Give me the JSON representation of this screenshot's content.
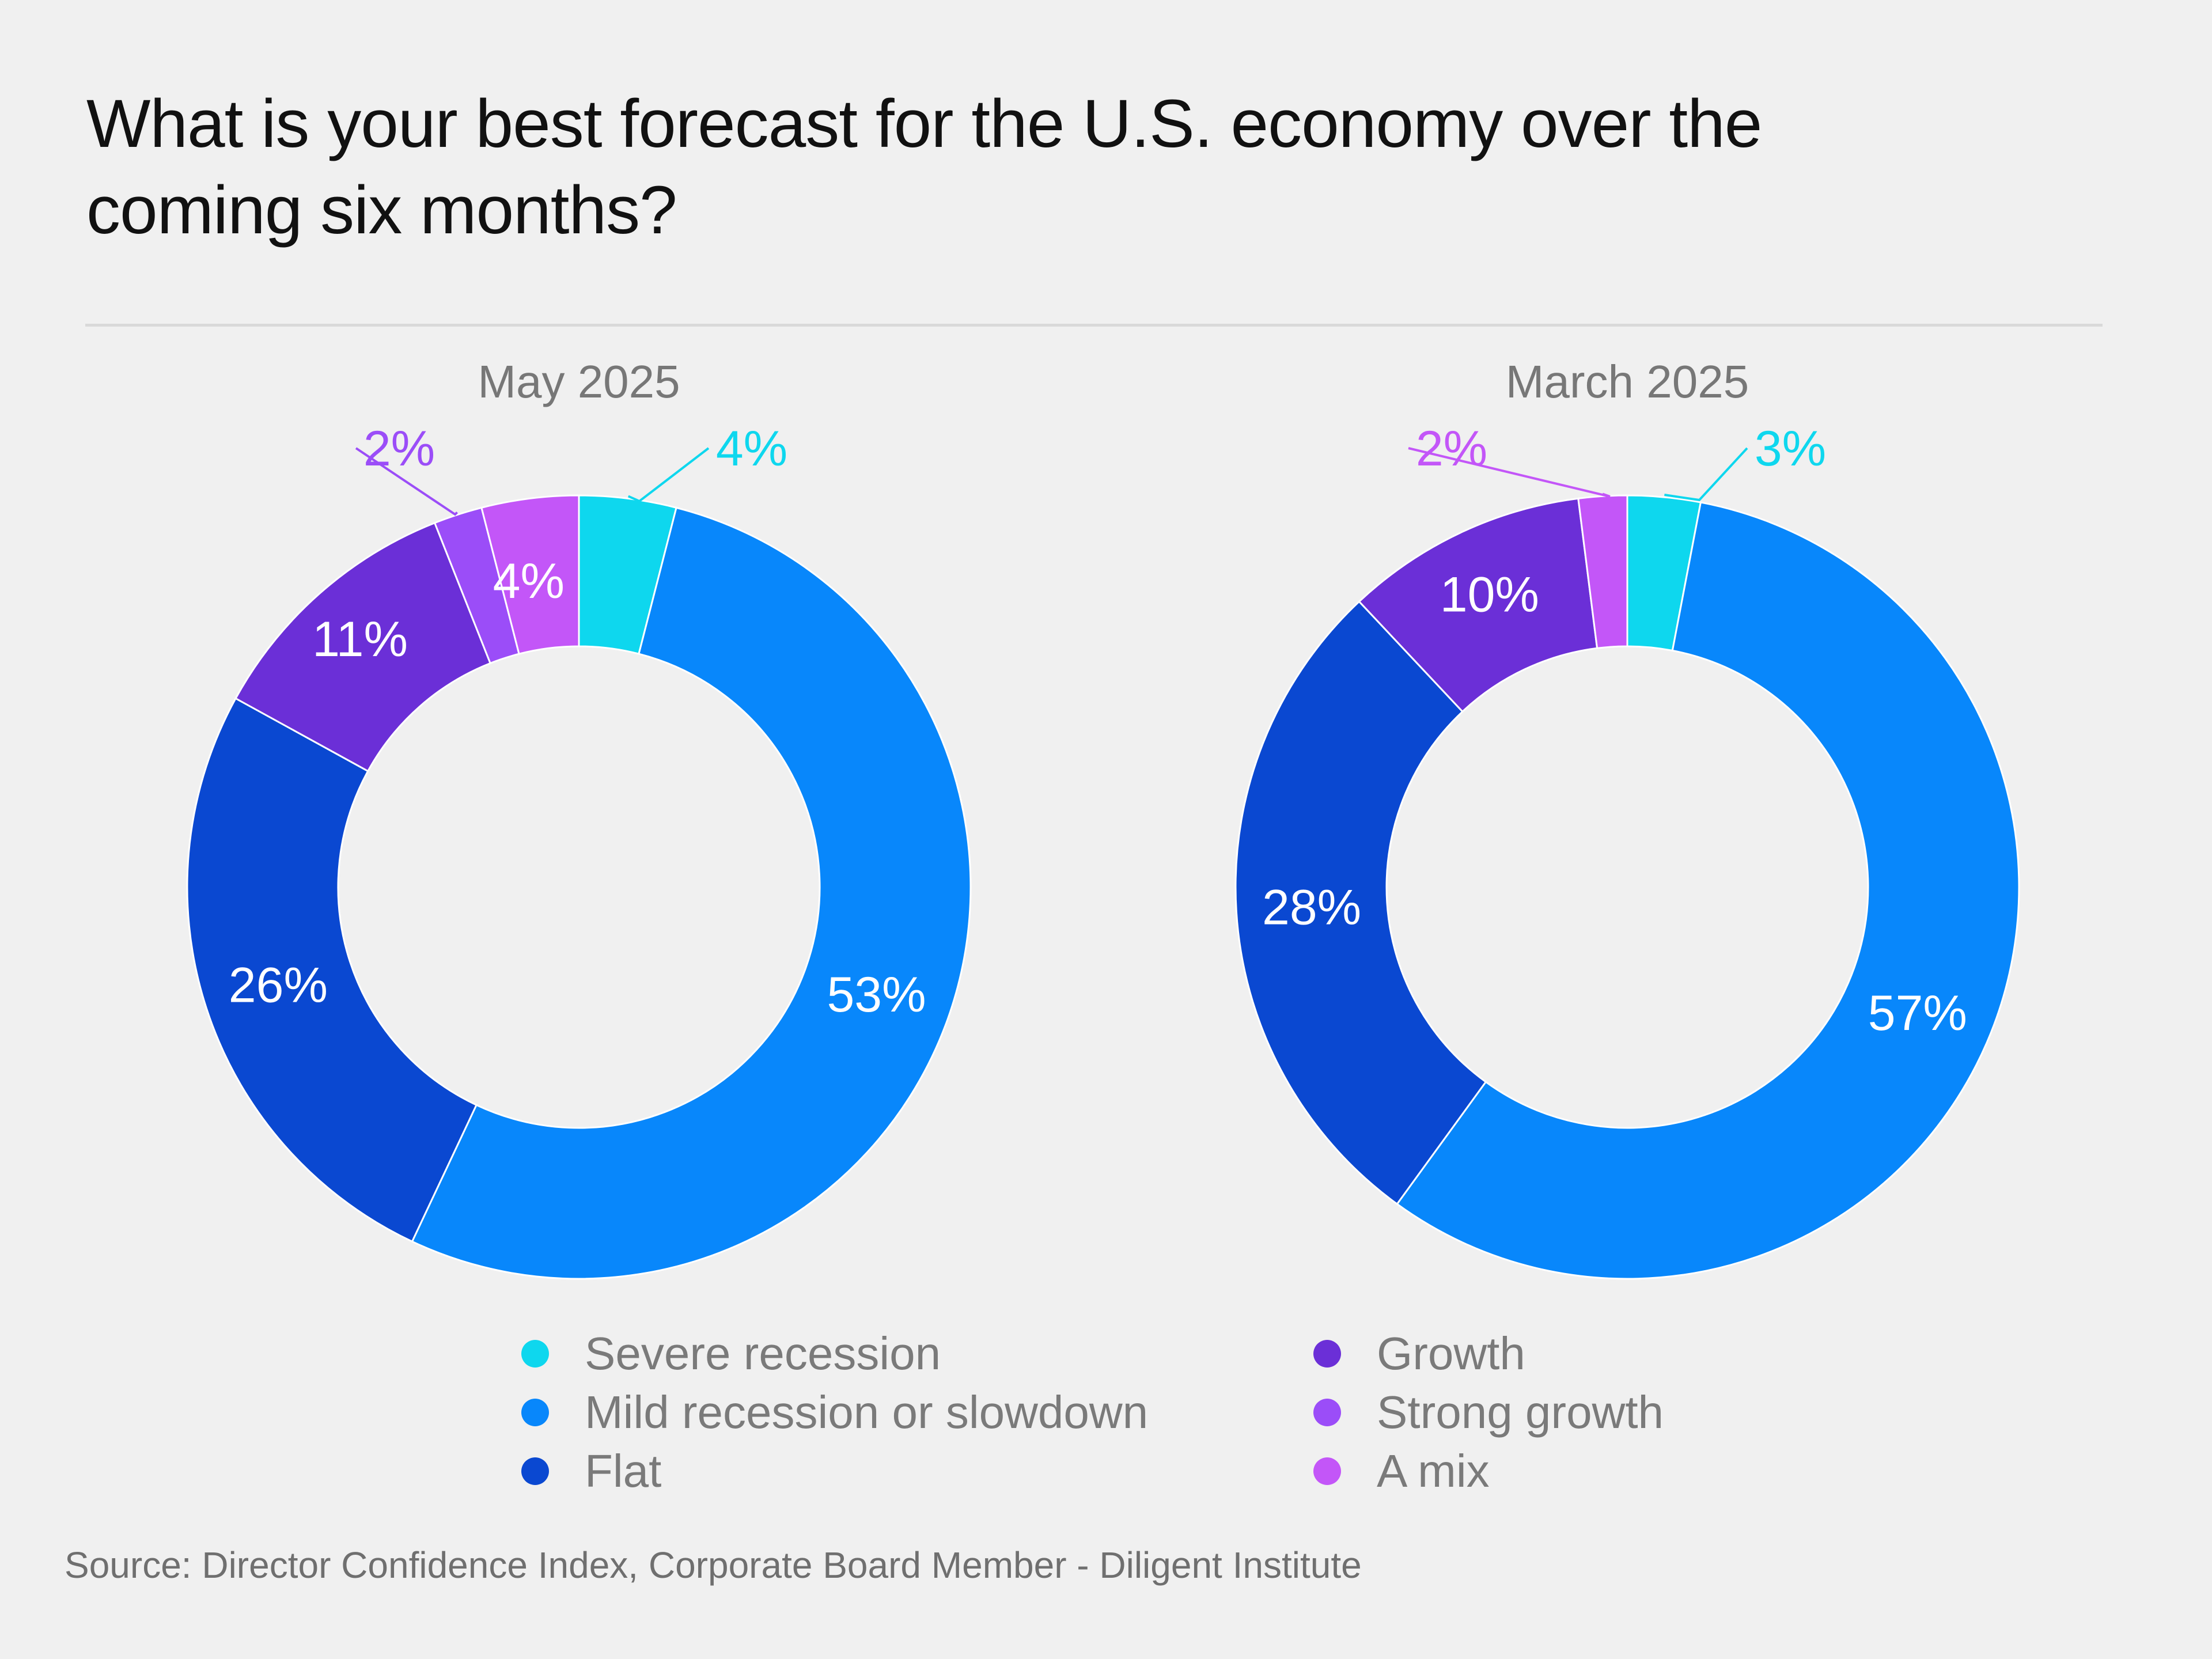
{
  "title": "What is your best forecast for the U.S. economy over the coming six months?",
  "source": "Source: Director Confidence Index, Corporate Board Member - Diligent Institute",
  "chart_data": [
    {
      "type": "pie",
      "variant": "donut",
      "title": "May 2025",
      "categories": [
        "Severe recession",
        "Mild recession or slowdown",
        "Flat",
        "Growth",
        "Strong growth",
        "A mix"
      ],
      "values": [
        4,
        53,
        26,
        11,
        2,
        4
      ],
      "labels": [
        "4%",
        "53%",
        "26%",
        "11%",
        "2%",
        "4%"
      ],
      "colors": [
        "#0ed7ee",
        "#0887fb",
        "#0a48d1",
        "#6b2fd7",
        "#9b4df8",
        "#c356f8"
      ]
    },
    {
      "type": "pie",
      "variant": "donut",
      "title": "March 2025",
      "categories": [
        "Severe recession",
        "Mild recession or slowdown",
        "Flat",
        "Growth",
        "A mix"
      ],
      "values": [
        3,
        57,
        28,
        10,
        2
      ],
      "labels": [
        "3%",
        "57%",
        "28%",
        "10%",
        "2%"
      ],
      "colors": [
        "#0ed7ee",
        "#0887fb",
        "#0a48d1",
        "#6b2fd7",
        "#c356f8"
      ]
    }
  ],
  "legend": [
    {
      "label": "Severe recession",
      "color": "#0ed7ee"
    },
    {
      "label": "Mild recession or slowdown",
      "color": "#0887fb"
    },
    {
      "label": "Flat",
      "color": "#0a48d1"
    },
    {
      "label": "Growth",
      "color": "#6b2fd7"
    },
    {
      "label": "Strong growth",
      "color": "#9b4df8"
    },
    {
      "label": "A mix",
      "color": "#c356f8"
    }
  ]
}
